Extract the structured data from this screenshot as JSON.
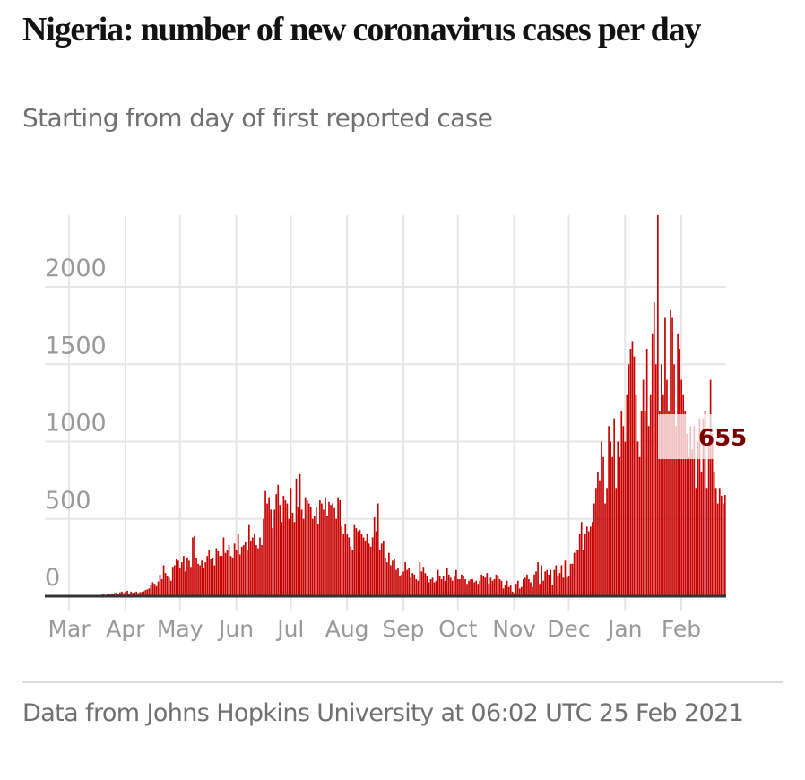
{
  "header": {
    "title": "Nigeria: number of new coronavirus cases per day",
    "subtitle": "Starting from day of first reported case"
  },
  "footer": {
    "source": "Data from Johns Hopkins University at 06:02 UTC 25 Feb 2021"
  },
  "colors": {
    "bar": "#c70000",
    "callout_text": "#7a0000",
    "gridline": "#e6e6e6",
    "axis": "#333333",
    "tick_label": "#999999"
  },
  "chart_data": {
    "type": "bar",
    "title": "Nigeria: number of new coronavirus cases per day",
    "subtitle": "Starting from day of first reported case",
    "xlabel": "",
    "ylabel": "",
    "ylim": [
      0,
      2464
    ],
    "yticks": [
      0,
      500,
      1000,
      1500,
      2000
    ],
    "ytick_labels": [
      "0",
      "500",
      "1000",
      "1500",
      "2000"
    ],
    "x_start_date": "2020-02-28",
    "x_end_date": "2021-02-24",
    "xtick_labels": [
      "Mar",
      "Apr",
      "May",
      "Jun",
      "Jul",
      "Aug",
      "Sep",
      "Oct",
      "Nov",
      "Dec",
      "Jan",
      "Feb"
    ],
    "xtick_day_index": [
      2,
      33,
      63,
      94,
      124,
      155,
      186,
      216,
      247,
      277,
      308,
      339
    ],
    "grid": true,
    "legend": "none",
    "annotation": {
      "label": "655",
      "value": 655,
      "position": "last-bar"
    },
    "values": [
      1,
      0,
      0,
      0,
      0,
      0,
      0,
      0,
      0,
      0,
      0,
      0,
      0,
      0,
      0,
      0,
      0,
      0,
      0,
      0,
      0,
      0,
      0,
      0,
      0,
      0,
      0,
      0,
      0,
      0,
      5,
      10,
      12,
      8,
      15,
      14,
      18,
      12,
      20,
      22,
      15,
      25,
      30,
      20,
      28,
      35,
      18,
      30,
      22,
      25,
      30,
      20,
      26,
      28,
      32,
      40,
      44,
      50,
      70,
      90,
      80,
      65,
      95,
      140,
      110,
      200,
      150,
      130,
      120,
      100,
      190,
      200,
      240,
      230,
      180,
      220,
      260,
      160,
      250,
      230,
      190,
      380,
      390,
      250,
      210,
      200,
      230,
      180,
      220,
      260,
      300,
      240,
      250,
      200,
      310,
      290,
      260,
      260,
      380,
      280,
      300,
      330,
      260,
      250,
      340,
      300,
      400,
      270,
      320,
      330,
      350,
      300,
      460,
      360,
      380,
      400,
      330,
      310,
      380,
      330,
      500,
      680,
      600,
      640,
      560,
      440,
      560,
      660,
      720,
      590,
      480,
      650,
      620,
      600,
      500,
      700,
      540,
      480,
      760,
      580,
      790,
      560,
      500,
      640,
      620,
      600,
      580,
      500,
      520,
      580,
      470,
      620,
      600,
      560,
      640,
      520,
      610,
      590,
      600,
      570,
      500,
      640,
      620,
      450,
      400,
      470,
      400,
      380,
      320,
      300,
      460,
      440,
      420,
      430,
      400,
      380,
      360,
      400,
      340,
      320,
      380,
      510,
      420,
      600,
      300,
      340,
      360,
      250,
      220,
      280,
      200,
      230,
      240,
      170,
      180,
      130,
      140,
      160,
      220,
      170,
      180,
      120,
      150,
      140,
      110,
      100,
      220,
      160,
      190,
      150,
      130,
      90,
      110,
      120,
      90,
      100,
      170,
      130,
      110,
      130,
      100,
      180,
      140,
      120,
      100,
      130,
      170,
      110,
      110,
      140,
      130,
      110,
      80,
      100,
      110,
      110,
      90,
      100,
      80,
      100,
      140,
      130,
      120,
      150,
      80,
      120,
      100,
      110,
      140,
      130,
      110,
      100,
      50,
      70,
      100,
      60,
      70,
      30,
      20,
      80,
      100,
      50,
      60,
      110,
      120,
      140,
      110,
      90,
      60,
      140,
      160,
      220,
      80,
      200,
      100,
      160,
      170,
      140,
      170,
      70,
      170,
      200,
      130,
      150,
      200,
      120,
      230,
      120,
      130,
      210,
      210,
      280,
      300,
      300,
      400,
      480,
      300,
      400,
      450,
      420,
      450,
      480,
      600,
      700,
      800,
      750,
      1000,
      900,
      600,
      700,
      1100,
      1000,
      900,
      1150,
      700,
      1000,
      900,
      1200,
      1100,
      1000,
      1300,
      1500,
      1600,
      1650,
      1550,
      1300,
      1000,
      900,
      1200,
      1400,
      1200,
      1600,
      1100,
      1300,
      1700,
      1900,
      1500,
      2464,
      1200,
      1500,
      1300,
      1800,
      1400,
      1200,
      1850,
      1800,
      1500,
      1100,
      1700,
      1600,
      1400,
      1300,
      1200,
      1050,
      900,
      1100,
      950,
      1100,
      700,
      1000,
      1150,
      800,
      1150,
      1200,
      700,
      1000,
      1400,
      1050,
      800,
      700,
      600,
      700,
      650,
      600,
      655
    ]
  }
}
